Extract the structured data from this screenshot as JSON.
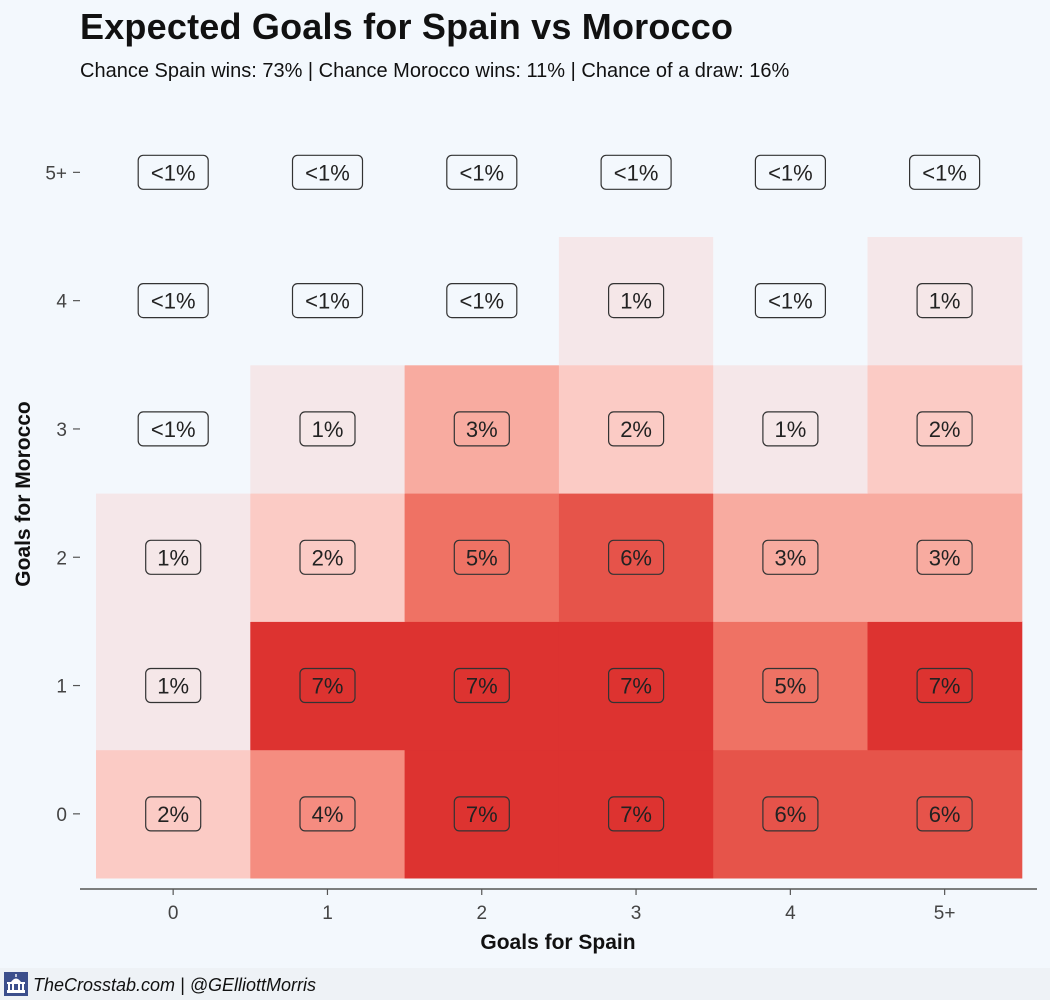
{
  "header": {
    "title": "Expected Goals for Spain vs Morocco",
    "subtitle": "Chance Spain wins: 73% | Chance Morocco wins: 11% | Chance of a draw: 16%"
  },
  "footer": {
    "credit": "TheCrosstab.com | @GElliottMorris",
    "logo_icon": "capitol-building-icon"
  },
  "chart_data": {
    "type": "heatmap",
    "xlabel": "Goals for Spain",
    "ylabel": "Goals for Morocco",
    "x_categories": [
      "0",
      "1",
      "2",
      "3",
      "4",
      "5+"
    ],
    "y_categories": [
      "0",
      "1",
      "2",
      "3",
      "4",
      "5+"
    ],
    "cells": [
      {
        "x": "0",
        "y": "0",
        "label": "2%",
        "value": 2
      },
      {
        "x": "1",
        "y": "0",
        "label": "4%",
        "value": 4
      },
      {
        "x": "2",
        "y": "0",
        "label": "7%",
        "value": 7
      },
      {
        "x": "3",
        "y": "0",
        "label": "7%",
        "value": 7
      },
      {
        "x": "4",
        "y": "0",
        "label": "6%",
        "value": 6
      },
      {
        "x": "5+",
        "y": "0",
        "label": "6%",
        "value": 6
      },
      {
        "x": "0",
        "y": "1",
        "label": "1%",
        "value": 1
      },
      {
        "x": "1",
        "y": "1",
        "label": "7%",
        "value": 7
      },
      {
        "x": "2",
        "y": "1",
        "label": "7%",
        "value": 7
      },
      {
        "x": "3",
        "y": "1",
        "label": "7%",
        "value": 7
      },
      {
        "x": "4",
        "y": "1",
        "label": "5%",
        "value": 5
      },
      {
        "x": "5+",
        "y": "1",
        "label": "7%",
        "value": 7
      },
      {
        "x": "0",
        "y": "2",
        "label": "1%",
        "value": 1
      },
      {
        "x": "1",
        "y": "2",
        "label": "2%",
        "value": 2
      },
      {
        "x": "2",
        "y": "2",
        "label": "5%",
        "value": 5
      },
      {
        "x": "3",
        "y": "2",
        "label": "6%",
        "value": 6
      },
      {
        "x": "4",
        "y": "2",
        "label": "3%",
        "value": 3
      },
      {
        "x": "5+",
        "y": "2",
        "label": "3%",
        "value": 3
      },
      {
        "x": "0",
        "y": "3",
        "label": "<1%",
        "value": 0
      },
      {
        "x": "1",
        "y": "3",
        "label": "1%",
        "value": 1
      },
      {
        "x": "2",
        "y": "3",
        "label": "3%",
        "value": 3
      },
      {
        "x": "3",
        "y": "3",
        "label": "2%",
        "value": 2
      },
      {
        "x": "4",
        "y": "3",
        "label": "1%",
        "value": 1
      },
      {
        "x": "5+",
        "y": "3",
        "label": "2%",
        "value": 2
      },
      {
        "x": "0",
        "y": "4",
        "label": "<1%",
        "value": 0
      },
      {
        "x": "1",
        "y": "4",
        "label": "<1%",
        "value": 0
      },
      {
        "x": "2",
        "y": "4",
        "label": "<1%",
        "value": 0
      },
      {
        "x": "3",
        "y": "4",
        "label": "1%",
        "value": 1
      },
      {
        "x": "4",
        "y": "4",
        "label": "<1%",
        "value": 0
      },
      {
        "x": "5+",
        "y": "4",
        "label": "1%",
        "value": 1
      },
      {
        "x": "0",
        "y": "5+",
        "label": "<1%",
        "value": 0
      },
      {
        "x": "1",
        "y": "5+",
        "label": "<1%",
        "value": 0
      },
      {
        "x": "2",
        "y": "5+",
        "label": "<1%",
        "value": 0
      },
      {
        "x": "3",
        "y": "5+",
        "label": "<1%",
        "value": 0
      },
      {
        "x": "4",
        "y": "5+",
        "label": "<1%",
        "value": 0
      },
      {
        "x": "5+",
        "y": "5+",
        "label": "<1%",
        "value": 0
      }
    ],
    "color_scale": {
      "0": "#f3f8fd",
      "1": "#f5e7e9",
      "2": "#fbcbc5",
      "3": "#f8aba0",
      "4": "#f58d80",
      "5": "#ef7264",
      "6": "#e6544a",
      "7": "#dd3330"
    },
    "grid": false,
    "legend": "none"
  }
}
